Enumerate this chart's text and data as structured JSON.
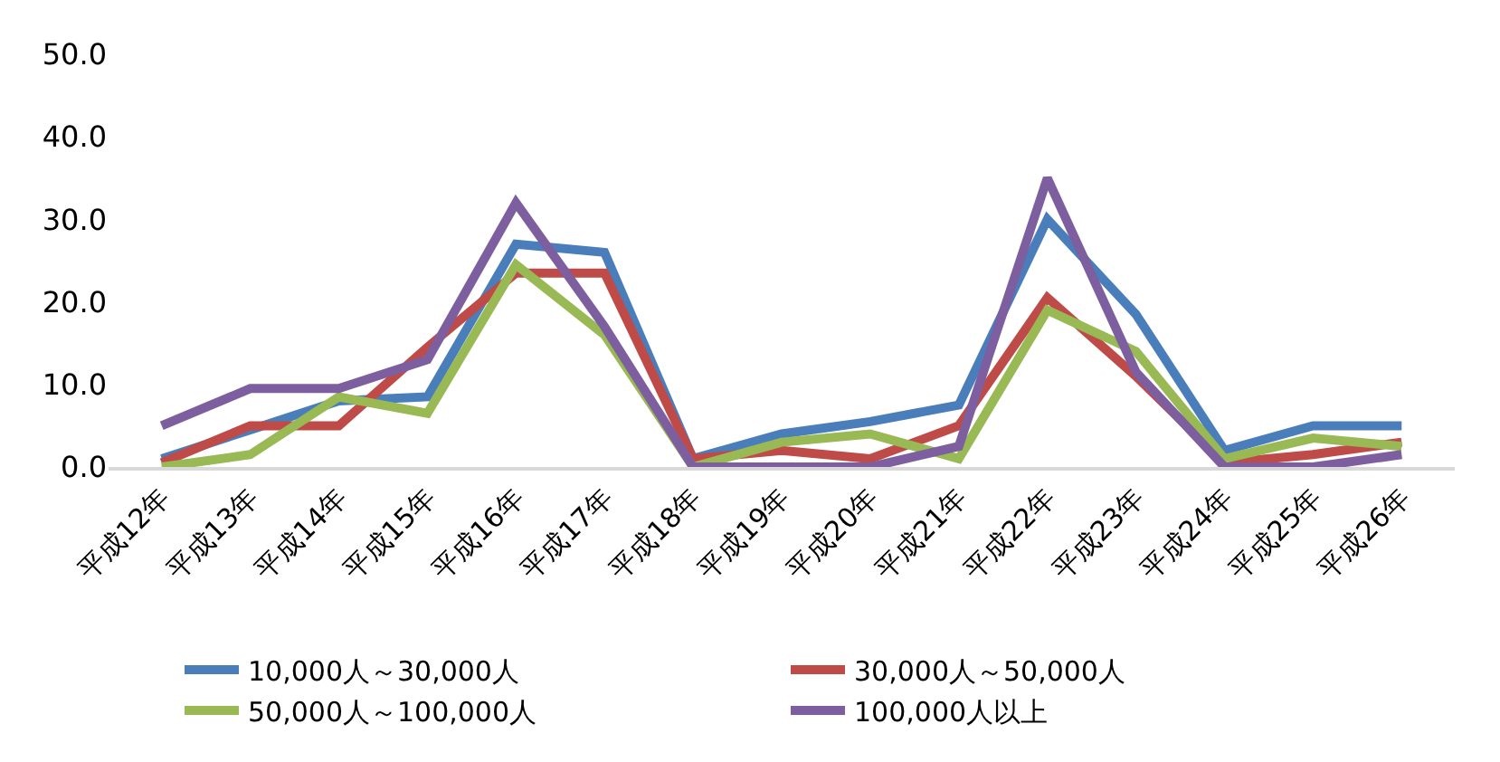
{
  "chart_data": {
    "type": "line",
    "categories": [
      "平成12年",
      "平成13年",
      "平成14年",
      "平成15年",
      "平成16年",
      "平成17年",
      "平成18年",
      "平成19年",
      "平成20年",
      "平成21年",
      "平成22年",
      "平成23年",
      "平成24年",
      "平成25年",
      "平成26年"
    ],
    "series": [
      {
        "name": "10,000人～30,000人",
        "color": "#4a7ebb",
        "values": [
          1,
          4.5,
          8,
          8.5,
          27,
          26,
          1,
          4,
          5.5,
          7.5,
          30,
          18.5,
          2,
          5,
          5
        ]
      },
      {
        "name": "30,000人～50,000人",
        "color": "#be4b48",
        "values": [
          0.5,
          5,
          5,
          14.5,
          23.5,
          23.5,
          1,
          2,
          1,
          5,
          20.5,
          11,
          0.5,
          1.5,
          3
        ]
      },
      {
        "name": "50,000人～100,000人",
        "color": "#98b954",
        "values": [
          0,
          1.5,
          8.5,
          6.5,
          24.5,
          16,
          0,
          3,
          4,
          1,
          19,
          14,
          1,
          3.5,
          2.5
        ]
      },
      {
        "name": "100,000人以上",
        "color": "#7d5fa0",
        "values": [
          5,
          9.5,
          9.5,
          13,
          32,
          17,
          0,
          0,
          0,
          2.5,
          35,
          11.5,
          0,
          0,
          1.5
        ]
      }
    ],
    "ylim": [
      0,
      50
    ],
    "yticks": [
      {
        "value": 0,
        "label": "0.0"
      },
      {
        "value": 10,
        "label": "10.0"
      },
      {
        "value": 20,
        "label": "20.0"
      },
      {
        "value": 30,
        "label": "30.0"
      },
      {
        "value": 40,
        "label": "40.0"
      },
      {
        "value": 50,
        "label": "50.0"
      }
    ],
    "legend": "bottom",
    "marker": "none",
    "line_style": "solid"
  }
}
